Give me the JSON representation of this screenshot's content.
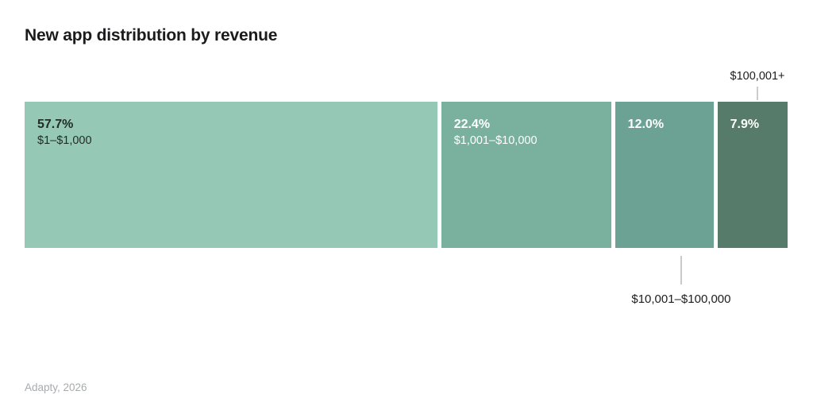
{
  "title": "New app distribution by revenue",
  "source": "Adapty, 2026",
  "chart_data": {
    "type": "bar",
    "variant": "horizontal-stacked-100pct",
    "title": "New app distribution by revenue",
    "unit": "%",
    "categories": [
      "$1–$1,000",
      "$1,001–$10,000",
      "$10,001–$100,000",
      "$100,001+"
    ],
    "values": [
      57.7,
      22.4,
      12.0,
      7.9
    ],
    "segments": [
      {
        "pct_label": "57.7%",
        "label": "$1–$1,000",
        "value": 57.7,
        "color": "#96c9b5",
        "text_color": "#212d26",
        "label_position": "inside"
      },
      {
        "pct_label": "22.4%",
        "label": "$1,001–$10,000",
        "value": 22.4,
        "color": "#7ab19e",
        "text_color": "#ffffff",
        "label_position": "inside"
      },
      {
        "pct_label": "12.0%",
        "label": "$10,001–$100,000",
        "value": 12.0,
        "color": "#6ca294",
        "text_color": "#ffffff",
        "label_position": "callout-below"
      },
      {
        "pct_label": "7.9%",
        "label": "$100,001+",
        "value": 7.9,
        "color": "#577b6a",
        "text_color": "#ffffff",
        "label_position": "callout-above"
      }
    ],
    "callout_above": "$100,001+",
    "callout_below": "$10,001–$100,000",
    "legend": "none",
    "grid": false,
    "source": "Adapty, 2026",
    "tick_line_color": "#cbcdcc",
    "background_color": "#ffffff"
  }
}
